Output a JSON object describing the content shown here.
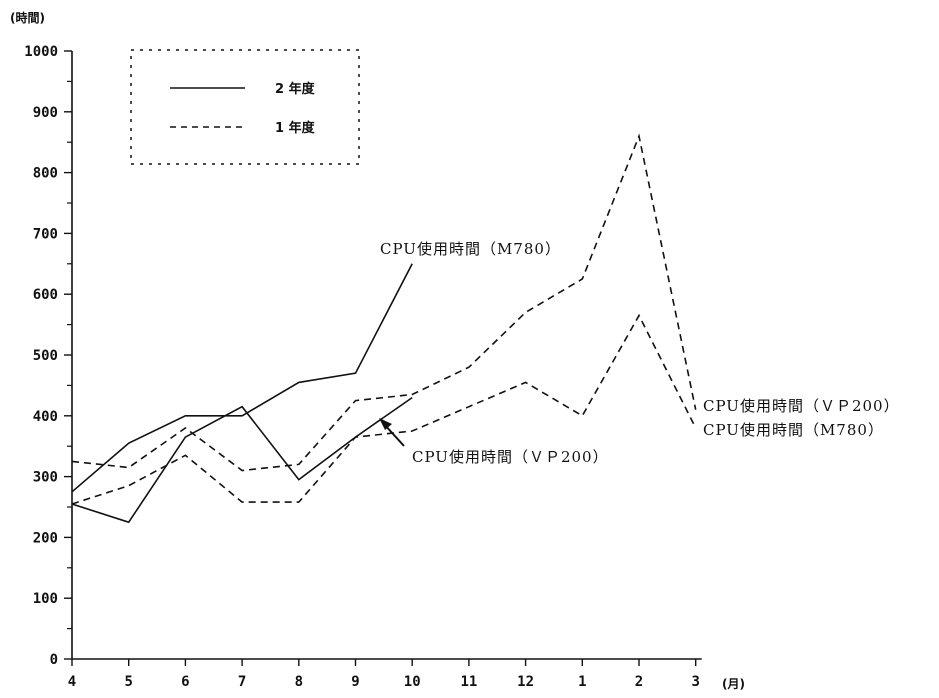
{
  "chart_data": {
    "type": "line",
    "y_unit_label": "(時間)",
    "x_unit_label": "(月)",
    "categories": [
      "4",
      "5",
      "6",
      "7",
      "8",
      "9",
      "10",
      "11",
      "12",
      "1",
      "2",
      "3"
    ],
    "ylim": [
      0,
      1000
    ],
    "yticks": [
      "0",
      "100",
      "200",
      "300",
      "400",
      "500",
      "600",
      "700",
      "800",
      "900",
      "1000"
    ],
    "legend": {
      "position": "top-left",
      "entries": [
        {
          "label": "2 年度",
          "style": "solid"
        },
        {
          "label": "1 年度",
          "style": "dashed"
        }
      ]
    },
    "series": [
      {
        "name": "CPU使用時間(M780)",
        "year": "2 年度",
        "style": "solid",
        "values": [
          275,
          355,
          400,
          400,
          455,
          470,
          650,
          null,
          null,
          null,
          null,
          null
        ]
      },
      {
        "name": "CPU使用時間(VP200)",
        "year": "2 年度",
        "style": "solid",
        "values": [
          255,
          225,
          365,
          415,
          295,
          365,
          430,
          null,
          null,
          null,
          null,
          null
        ]
      },
      {
        "name": "CPU使用時間(VP200)",
        "year": "1 年度",
        "style": "dashed",
        "values": [
          325,
          315,
          380,
          310,
          320,
          425,
          435,
          480,
          570,
          625,
          860,
          410
        ]
      },
      {
        "name": "CPU使用時間(M780)",
        "year": "1 年度",
        "style": "dashed",
        "values": [
          255,
          285,
          335,
          258,
          258,
          365,
          375,
          415,
          455,
          400,
          565,
          380
        ]
      }
    ],
    "annotations": [
      {
        "text": "CPU使用時間（M780）"
      },
      {
        "text": "CPU使用時間（ＶＰ200）"
      },
      {
        "text": "CPU使用時間（ＶＰ200）"
      },
      {
        "text": "CPU使用時間（M780）"
      }
    ]
  }
}
